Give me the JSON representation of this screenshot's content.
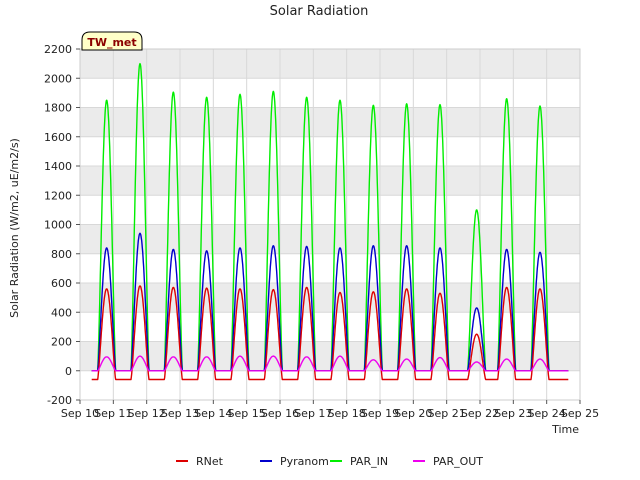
{
  "chart_data": {
    "type": "line",
    "title": "Solar Radiation",
    "xlabel": "Time",
    "ylabel": "Solar Radiation (W/m2, uE/m2/s)",
    "badge": "TW_met",
    "xlim": [
      10,
      25
    ],
    "ylim": [
      -200,
      2200
    ],
    "x_ticks": [
      {
        "value": 10,
        "label": "Sep 10"
      },
      {
        "value": 11,
        "label": "Sep 11"
      },
      {
        "value": 12,
        "label": "Sep 12"
      },
      {
        "value": 13,
        "label": "Sep 13"
      },
      {
        "value": 14,
        "label": "Sep 14"
      },
      {
        "value": 15,
        "label": "Sep 15"
      },
      {
        "value": 16,
        "label": "Sep 16"
      },
      {
        "value": 17,
        "label": "Sep 17"
      },
      {
        "value": 18,
        "label": "Sep 18"
      },
      {
        "value": 19,
        "label": "Sep 19"
      },
      {
        "value": 20,
        "label": "Sep 20"
      },
      {
        "value": 21,
        "label": "Sep 21"
      },
      {
        "value": 22,
        "label": "Sep 22"
      },
      {
        "value": 23,
        "label": "Sep 23"
      },
      {
        "value": 24,
        "label": "Sep 24"
      },
      {
        "value": 25,
        "label": "Sep 25"
      }
    ],
    "y_ticks": [
      -200,
      0,
      200,
      400,
      600,
      800,
      1000,
      1200,
      1400,
      1600,
      1800,
      2000,
      2200
    ],
    "grid": true,
    "legend_position": "bottom",
    "series": [
      {
        "name": "RNet",
        "color": "#dd0000",
        "night": -60,
        "peaks": [
          560,
          580,
          570,
          565,
          560,
          555,
          570,
          535,
          540,
          560,
          530,
          250,
          570,
          560
        ]
      },
      {
        "name": "Pyranom",
        "color": "#0000cc",
        "night": 0,
        "peaks": [
          840,
          940,
          830,
          820,
          840,
          855,
          850,
          840,
          855,
          855,
          840,
          430,
          830,
          810
        ]
      },
      {
        "name": "PAR_IN",
        "color": "#00ee00",
        "night": 0,
        "peaks": [
          1850,
          2100,
          1905,
          1870,
          1890,
          1910,
          1870,
          1850,
          1815,
          1825,
          1820,
          1100,
          1860,
          1810
        ]
      },
      {
        "name": "PAR_OUT",
        "color": "#ee00ee",
        "night": 0,
        "peaks": [
          95,
          100,
          95,
          95,
          100,
          100,
          95,
          100,
          75,
          80,
          90,
          60,
          80,
          80
        ]
      }
    ],
    "day_peak_x": [
      10.8,
      11.8,
      12.8,
      13.8,
      14.8,
      15.8,
      16.8,
      17.8,
      18.8,
      19.8,
      20.8,
      21.9,
      22.8,
      23.8
    ]
  }
}
